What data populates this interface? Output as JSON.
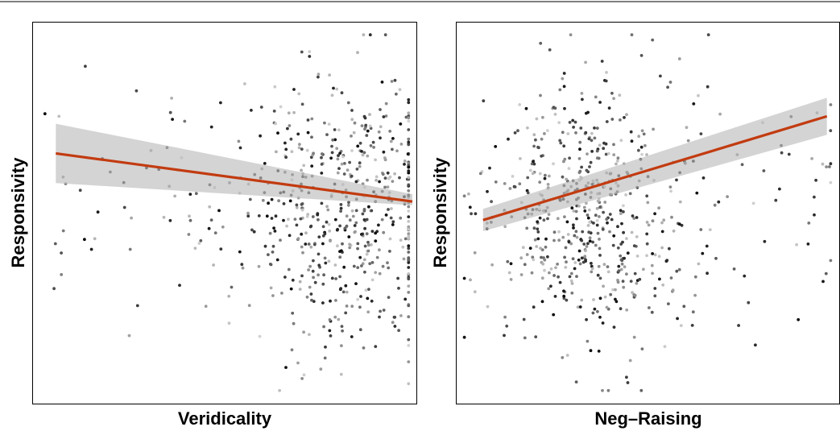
{
  "chart_data": [
    {
      "type": "scatter",
      "title": "",
      "xlabel": "Veridicality",
      "ylabel": "Responsivity",
      "tick_labels": "none",
      "grid": false,
      "legend": "none",
      "point_color": "grayscale",
      "fit_color": "#c23b10",
      "ci_color": "#bdbdbd",
      "xlim": [
        0,
        1
      ],
      "ylim": [
        0,
        1
      ],
      "fit": {
        "x": [
          0.05,
          1.0
        ],
        "y": [
          0.66,
          0.53
        ],
        "ci_lo": [
          0.58,
          0.52
        ],
        "ci_hi": [
          0.74,
          0.55
        ]
      },
      "points": {
        "count": 620,
        "seed": 11,
        "x_mean": 0.82,
        "x_sd": 0.14,
        "x_skew": "left",
        "y_mean": 0.5,
        "y_sd": 0.18
      }
    },
    {
      "type": "scatter",
      "title": "",
      "xlabel": "Neg–Raising",
      "ylabel": "Responsivity",
      "tick_labels": "none",
      "grid": false,
      "legend": "none",
      "point_color": "grayscale",
      "fit_color": "#c23b10",
      "ci_color": "#bdbdbd",
      "xlim": [
        0,
        1
      ],
      "ylim": [
        0,
        1
      ],
      "fit": {
        "x": [
          0.06,
          0.98
        ],
        "y": [
          0.48,
          0.76
        ],
        "ci_lo": [
          0.45,
          0.71
        ],
        "ci_hi": [
          0.51,
          0.81
        ]
      },
      "points": {
        "count": 620,
        "seed": 29,
        "x_mean": 0.33,
        "x_sd": 0.13,
        "x_skew": "right",
        "y_mean": 0.5,
        "y_sd": 0.18
      }
    }
  ]
}
